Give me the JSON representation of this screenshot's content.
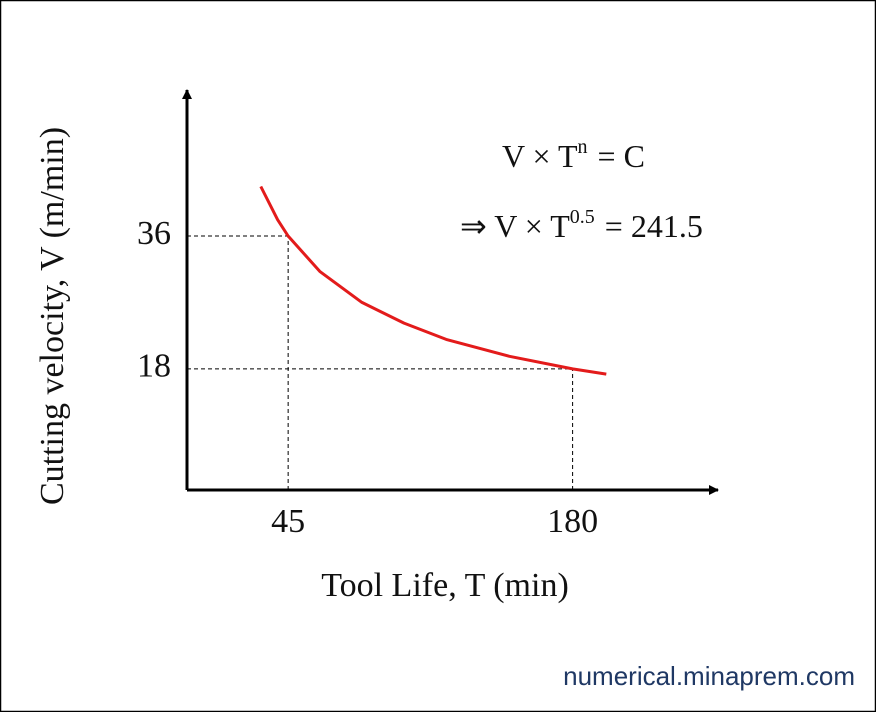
{
  "chart_data": {
    "type": "line",
    "x_label": "Tool Life, T (min)",
    "y_label": "Cutting velocity, V (m/min)",
    "x": [
      32,
      40,
      45,
      60,
      80,
      100,
      120,
      150,
      180,
      196
    ],
    "series": [
      {
        "color": "#e31b1b",
        "values": [
          42.7,
          38.2,
          36,
          31.2,
          27.0,
          24.2,
          22.0,
          19.7,
          18,
          17.3
        ]
      }
    ],
    "xlim": [
      -3,
      249
    ],
    "ylim": [
      1.6,
      55.5
    ],
    "xticks": [
      45,
      180
    ],
    "yticks": [
      18,
      36
    ],
    "equation_1": {
      "base": "V × T",
      "exponent": "n",
      "rest": "=  C"
    },
    "equation_2": {
      "base": "⇒ V × T",
      "exponent": "0.5",
      "rest": "= 241.5"
    },
    "watermark": "numerical.minaprem.com"
  }
}
